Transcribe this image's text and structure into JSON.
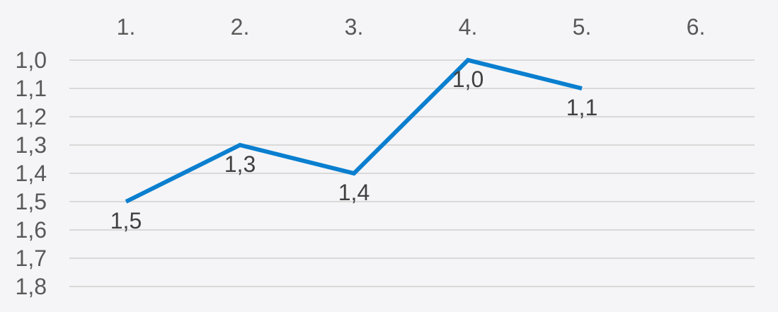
{
  "chart_data": {
    "type": "line",
    "categories": [
      "1.",
      "2.",
      "3.",
      "4.",
      "5.",
      "6."
    ],
    "series": [
      {
        "values": [
          1.5,
          1.3,
          1.4,
          1.0,
          1.1,
          null
        ]
      }
    ],
    "data_labels": [
      "1,5",
      "1,3",
      "1,4",
      "1,0",
      "1,1"
    ],
    "y_tick_labels": [
      "1,0",
      "1,1",
      "1,2",
      "1,3",
      "1,4",
      "1,5",
      "1,6",
      "1,7",
      "1,8"
    ],
    "y_ticks": [
      1.0,
      1.1,
      1.2,
      1.3,
      1.4,
      1.5,
      1.6,
      1.7,
      1.8
    ],
    "ylim": [
      1.0,
      1.8
    ],
    "y_axis_reversed": true,
    "x_axis_position": "top",
    "grid": true,
    "legend": "none",
    "title": "",
    "xlabel": "",
    "ylabel": "",
    "colors": {
      "line": "#0a7fcf",
      "grid": "#d9d9d9",
      "tick_text": "#595959",
      "data_label_text": "#404040",
      "background": "#f5f5f7"
    }
  }
}
